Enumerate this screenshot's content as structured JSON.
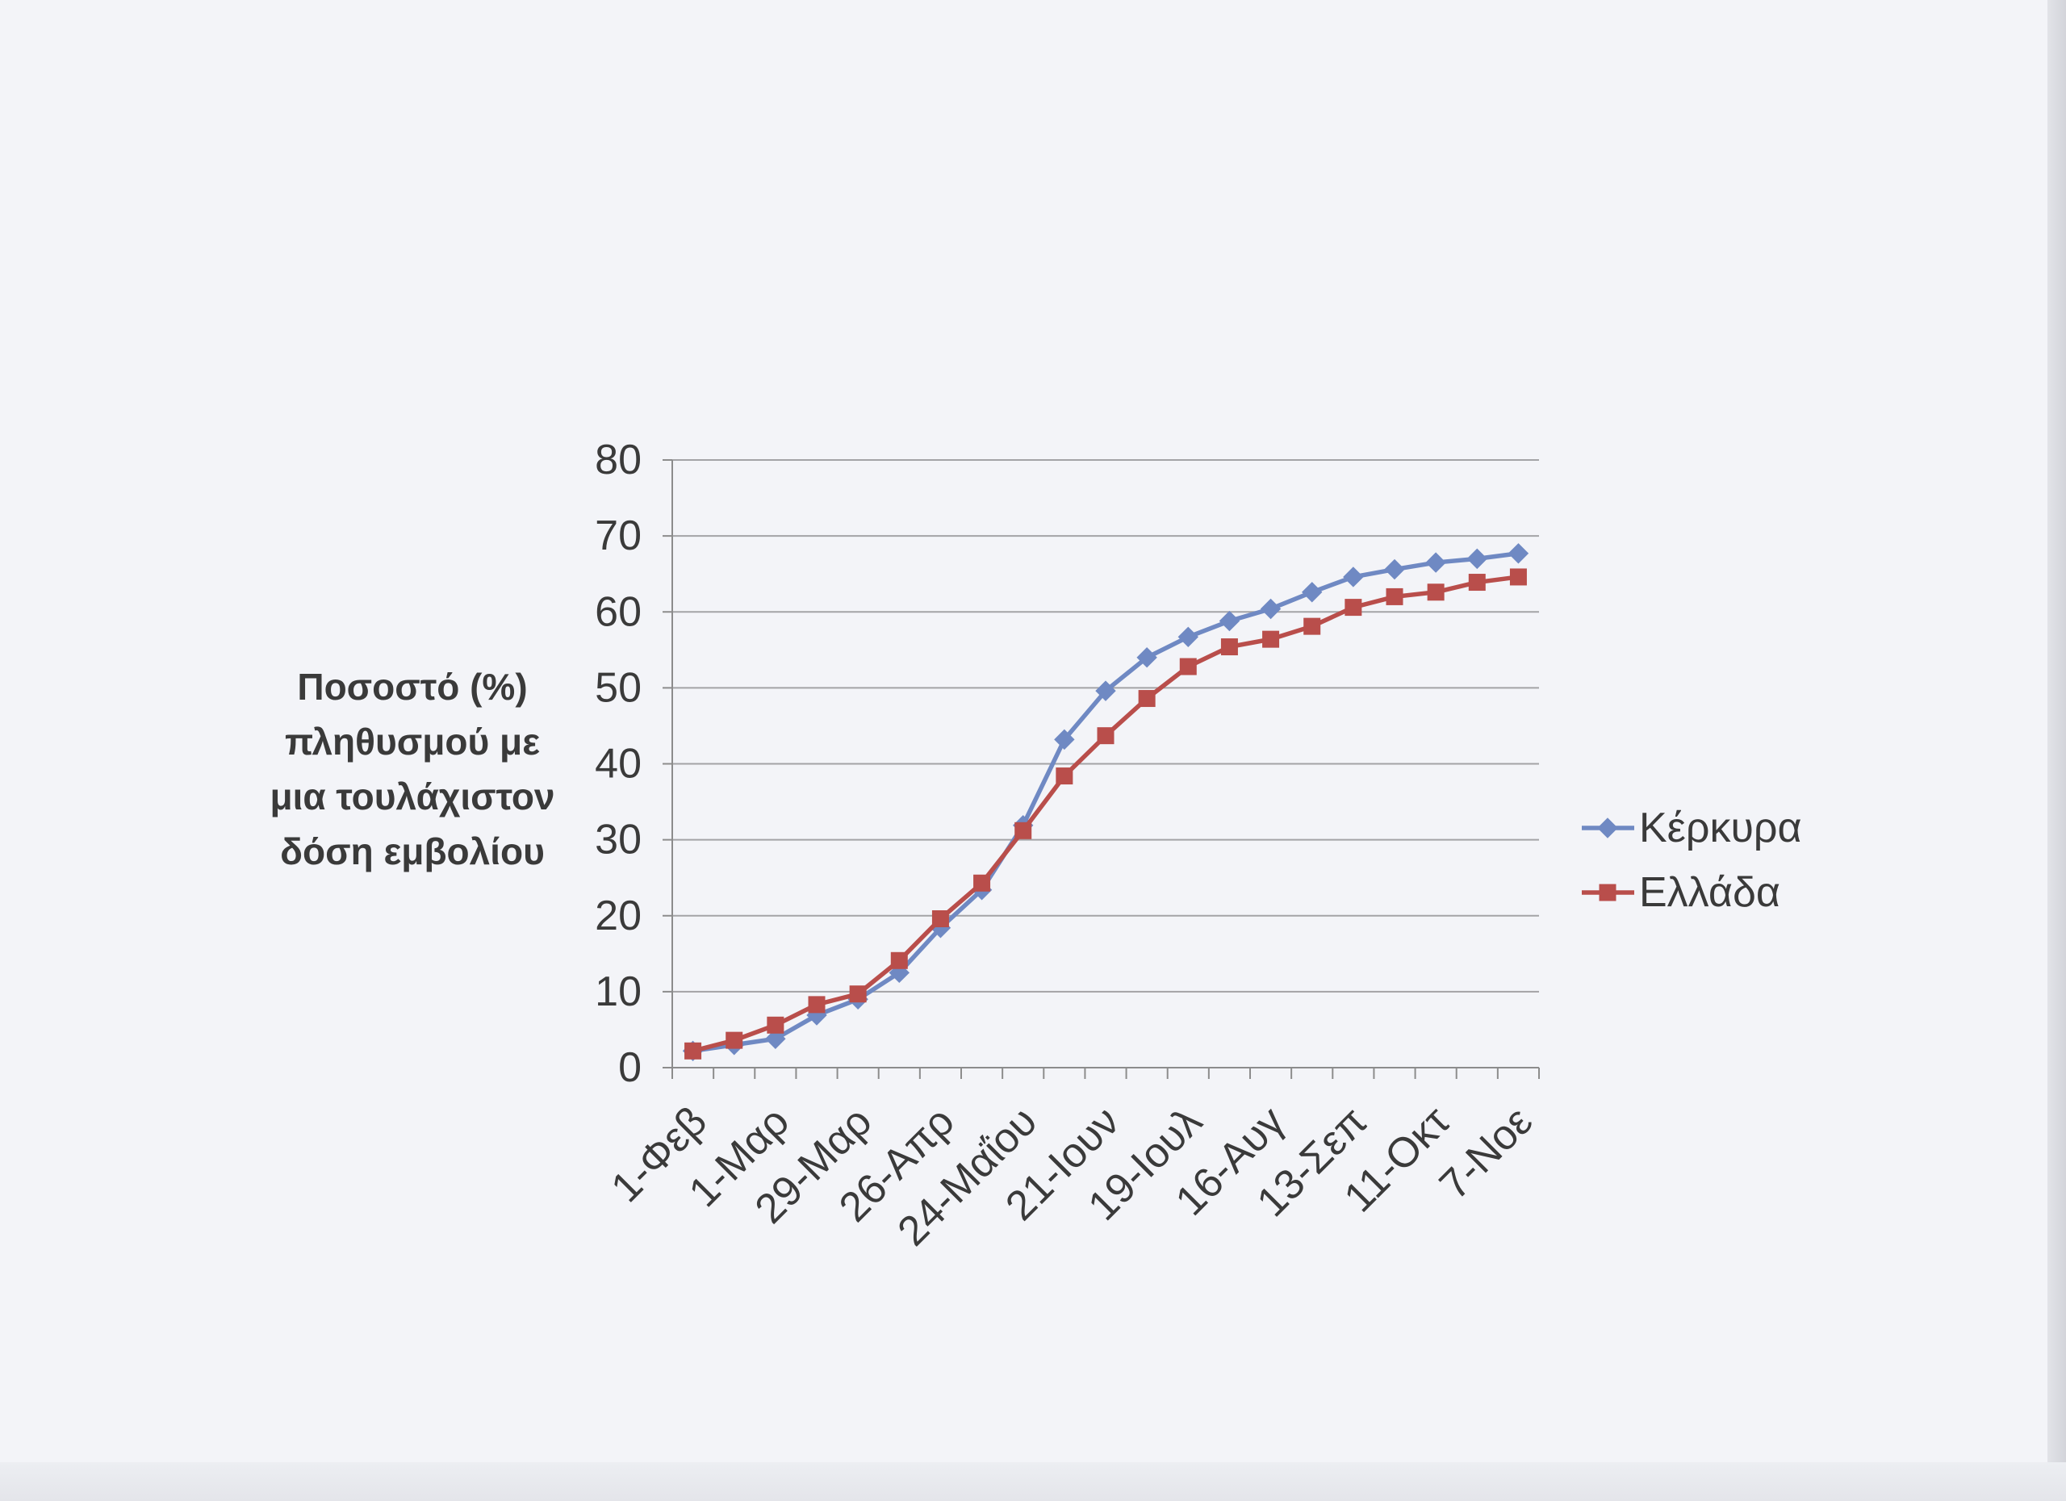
{
  "chart_data": {
    "type": "line",
    "categories": [
      "1-Φεβ",
      "",
      "1-Μαρ",
      "",
      "29-Μαρ",
      "",
      "26-Απρ",
      "",
      "24-Μαΐου",
      "",
      "21-Ιουν",
      "",
      "19-Ιουλ",
      "",
      "16-Αυγ",
      "",
      "13-Σεπ",
      "",
      "11-Οκτ",
      "",
      "7-Νοε"
    ],
    "series": [
      {
        "name": "Κέρκυρα",
        "color": "#6f89c3",
        "marker": "diamond",
        "values": [
          2.2,
          3.0,
          3.8,
          6.9,
          9.0,
          12.5,
          18.4,
          23.4,
          31.9,
          43.2,
          49.6,
          54.0,
          56.7,
          58.8,
          60.4,
          62.6,
          64.6,
          65.6,
          66.5,
          67.0,
          67.7
        ]
      },
      {
        "name": "Ελλάδα",
        "color": "#b94e4b",
        "marker": "square",
        "values": [
          2.2,
          3.6,
          5.6,
          8.3,
          9.7,
          14.1,
          19.6,
          24.3,
          31.2,
          38.4,
          43.7,
          48.6,
          52.8,
          55.4,
          56.4,
          58.1,
          60.6,
          62.0,
          62.6,
          63.9,
          64.6
        ]
      }
    ],
    "ylabel": "Ποσοστό (%)\nπληθυσμού με\nμια τουλάχιστον\nδόση εμβολίου",
    "ylim": [
      0,
      80
    ],
    "yticks": [
      0,
      10,
      20,
      30,
      40,
      50,
      60,
      70,
      80
    ],
    "grid": "horizontal",
    "legend": "right"
  }
}
